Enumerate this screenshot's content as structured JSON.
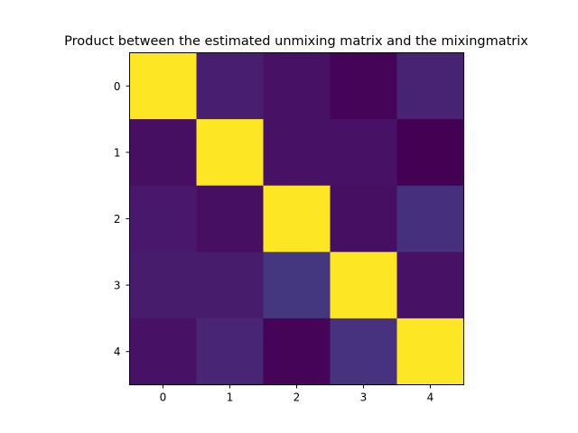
{
  "chart_data": {
    "type": "heatmap",
    "title": "Product between the estimated unmixing matrix and the mixingmatrix",
    "xlabel": "",
    "ylabel": "",
    "x_ticks": [
      "0",
      "1",
      "2",
      "3",
      "4"
    ],
    "y_ticks": [
      "0",
      "1",
      "2",
      "3",
      "4"
    ],
    "colormap": "viridis",
    "grid": false,
    "colorbar": false,
    "values": [
      [
        1.0,
        0.09,
        0.05,
        0.01,
        0.1
      ],
      [
        0.04,
        1.0,
        0.05,
        0.05,
        0.0
      ],
      [
        0.07,
        0.04,
        1.0,
        0.04,
        0.14
      ],
      [
        0.08,
        0.08,
        0.16,
        1.0,
        0.05
      ],
      [
        0.05,
        0.11,
        0.01,
        0.15,
        1.0
      ]
    ],
    "value_range": [
      0.0,
      1.0
    ]
  }
}
